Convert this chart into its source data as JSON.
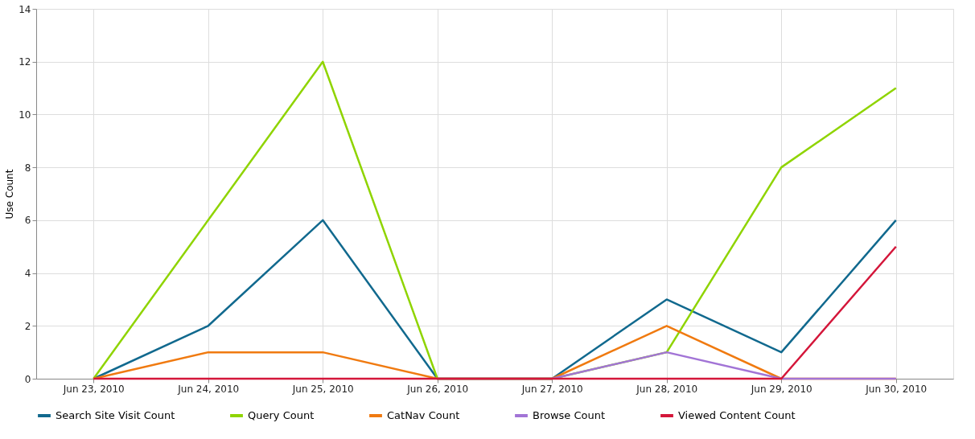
{
  "chart_data": {
    "type": "line",
    "ylabel": "Use Count",
    "categories": [
      "Jun 23, 2010",
      "Jun 24, 2010",
      "Jun 25, 2010",
      "Jun 26, 2010",
      "Jun 27, 2010",
      "Jun 28, 2010",
      "Jun 29, 2010",
      "Jun 30, 2010"
    ],
    "series": [
      {
        "name": "Search Site Visit Count",
        "color": "#11698e",
        "values": [
          0,
          2,
          6,
          0,
          0,
          3,
          1,
          6
        ]
      },
      {
        "name": "Query Count",
        "color": "#8fd400",
        "values": [
          0,
          6,
          12,
          0,
          0,
          1,
          8,
          11
        ]
      },
      {
        "name": "CatNav Count",
        "color": "#f07a10",
        "values": [
          0,
          1,
          1,
          0,
          0,
          2,
          0,
          0
        ]
      },
      {
        "name": "Browse Count",
        "color": "#a274d6",
        "values": [
          null,
          null,
          null,
          0,
          0,
          1,
          0,
          0
        ]
      },
      {
        "name": "Viewed Content Count",
        "color": "#d4163a",
        "values": [
          0,
          0,
          0,
          0,
          0,
          0,
          0,
          5
        ]
      }
    ],
    "ylim": [
      0,
      14
    ],
    "yticks": [
      0,
      2,
      4,
      6,
      8,
      10,
      12,
      14
    ],
    "grid": true,
    "legend": "bottom",
    "marker": "none",
    "line_style": "solid"
  }
}
